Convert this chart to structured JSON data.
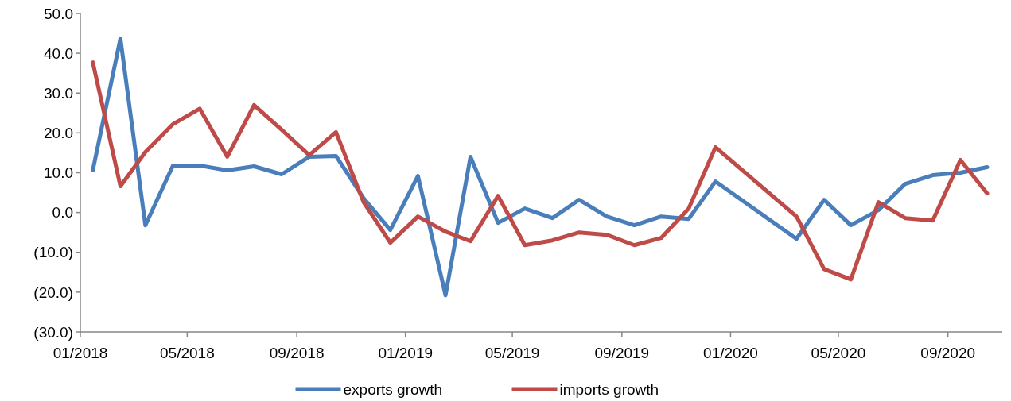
{
  "chart_data": {
    "type": "line",
    "x": [
      "2018-01-15",
      "2018-02-15",
      "2018-03-15",
      "2018-04-15",
      "2018-05-15",
      "2018-06-15",
      "2018-07-15",
      "2018-08-15",
      "2018-09-15",
      "2018-10-15",
      "2018-11-15",
      "2018-12-15",
      "2019-01-15",
      "2019-02-15",
      "2019-03-15",
      "2019-04-15",
      "2019-05-15",
      "2019-06-15",
      "2019-07-15",
      "2019-08-15",
      "2019-09-15",
      "2019-10-15",
      "2019-11-15",
      "2019-12-15",
      "2020-03-15",
      "2020-04-15",
      "2020-05-15",
      "2020-06-15",
      "2020-07-15",
      "2020-08-15",
      "2020-09-15",
      "2020-10-15"
    ],
    "series": [
      {
        "name": "exports growth",
        "color": "#4a7ebb",
        "values": [
          10.6,
          43.7,
          -3.2,
          11.8,
          11.8,
          10.6,
          11.6,
          9.6,
          14.0,
          14.2,
          3.6,
          -4.4,
          9.2,
          -20.8,
          14.0,
          -2.6,
          1.0,
          -1.4,
          3.2,
          -1.0,
          -3.2,
          -1.0,
          -1.6,
          7.8,
          -6.6,
          3.2,
          -3.2,
          0.6,
          7.2,
          9.4,
          10.0,
          11.4
        ]
      },
      {
        "name": "imports growth",
        "color": "#be4b48",
        "values": [
          37.7,
          6.6,
          15.2,
          22.2,
          26.1,
          14.0,
          27.0,
          20.8,
          14.4,
          20.2,
          2.6,
          -7.6,
          -1.0,
          -4.8,
          -7.2,
          4.2,
          -8.2,
          -7.0,
          -5.0,
          -5.6,
          -8.2,
          -6.4,
          1.0,
          16.4,
          -1.0,
          -14.2,
          -16.8,
          2.6,
          -1.4,
          -2.0,
          13.2,
          4.8
        ]
      }
    ],
    "xlim": [
      "2018-01-01",
      "2020-11-01"
    ],
    "xticks": [
      {
        "value": "2018-01-01",
        "label": "01/2018"
      },
      {
        "value": "2018-05-01",
        "label": "05/2018"
      },
      {
        "value": "2018-09-01",
        "label": "09/2018"
      },
      {
        "value": "2019-01-01",
        "label": "01/2019"
      },
      {
        "value": "2019-05-01",
        "label": "05/2019"
      },
      {
        "value": "2019-09-01",
        "label": "09/2019"
      },
      {
        "value": "2020-01-01",
        "label": "01/2020"
      },
      {
        "value": "2020-05-01",
        "label": "05/2020"
      },
      {
        "value": "2020-09-01",
        "label": "09/2020"
      }
    ],
    "ylim": [
      -30,
      50
    ],
    "yticks": [
      {
        "value": -30,
        "label": "(30.0)"
      },
      {
        "value": -20,
        "label": "(20.0)"
      },
      {
        "value": -10,
        "label": "(10.0)"
      },
      {
        "value": 0,
        "label": "0.0"
      },
      {
        "value": 10,
        "label": "10.0"
      },
      {
        "value": 20,
        "label": "20.0"
      },
      {
        "value": 30,
        "label": "30.0"
      },
      {
        "value": 40,
        "label": "40.0"
      },
      {
        "value": 50,
        "label": "50.0"
      }
    ],
    "grid": false,
    "legend": "bottom",
    "line_style": "solid",
    "marker": "none"
  }
}
